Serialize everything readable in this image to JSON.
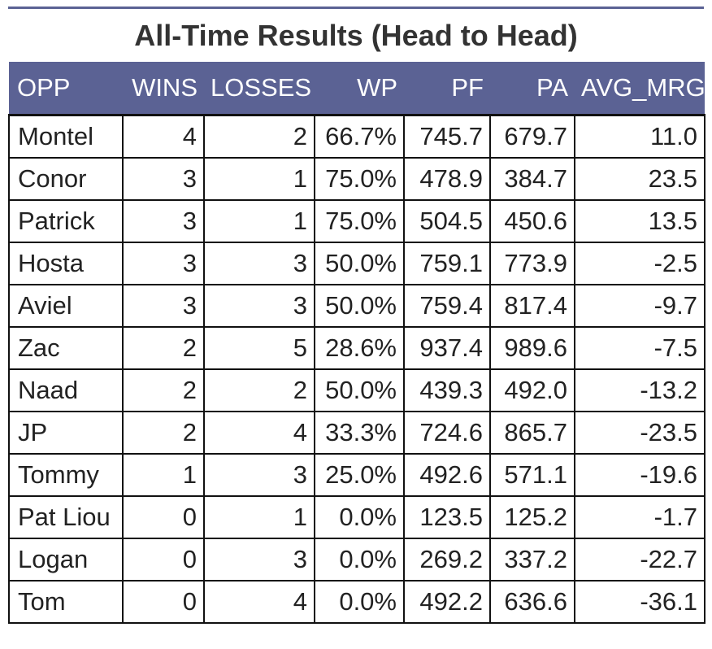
{
  "title": "All-Time Results (Head to Head)",
  "colors": {
    "header_background": "#5b6294",
    "header_text": "#ffffff",
    "grid_lines": "#111111"
  },
  "chart_data": {
    "type": "table",
    "title": "All-Time Results (Head to Head)",
    "columns": [
      "OPP",
      "WINS",
      "LOSSES",
      "WP",
      "PF",
      "PA",
      "AVG_MRG"
    ],
    "rows": [
      [
        "Montel",
        "4",
        "2",
        "66.7%",
        "745.7",
        "679.7",
        "11.0"
      ],
      [
        "Conor",
        "3",
        "1",
        "75.0%",
        "478.9",
        "384.7",
        "23.5"
      ],
      [
        "Patrick",
        "3",
        "1",
        "75.0%",
        "504.5",
        "450.6",
        "13.5"
      ],
      [
        "Hosta",
        "3",
        "3",
        "50.0%",
        "759.1",
        "773.9",
        "-2.5"
      ],
      [
        "Aviel",
        "3",
        "3",
        "50.0%",
        "759.4",
        "817.4",
        "-9.7"
      ],
      [
        "Zac",
        "2",
        "5",
        "28.6%",
        "937.4",
        "989.6",
        "-7.5"
      ],
      [
        "Naad",
        "2",
        "2",
        "50.0%",
        "439.3",
        "492.0",
        "-13.2"
      ],
      [
        "JP",
        "2",
        "4",
        "33.3%",
        "724.6",
        "865.7",
        "-23.5"
      ],
      [
        "Tommy",
        "1",
        "3",
        "25.0%",
        "492.6",
        "571.1",
        "-19.6"
      ],
      [
        "Pat Liou",
        "0",
        "1",
        "0.0%",
        "123.5",
        "125.2",
        "-1.7"
      ],
      [
        "Logan",
        "0",
        "3",
        "0.0%",
        "269.2",
        "337.2",
        "-22.7"
      ],
      [
        "Tom",
        "0",
        "4",
        "0.0%",
        "492.2",
        "636.6",
        "-36.1"
      ]
    ]
  }
}
